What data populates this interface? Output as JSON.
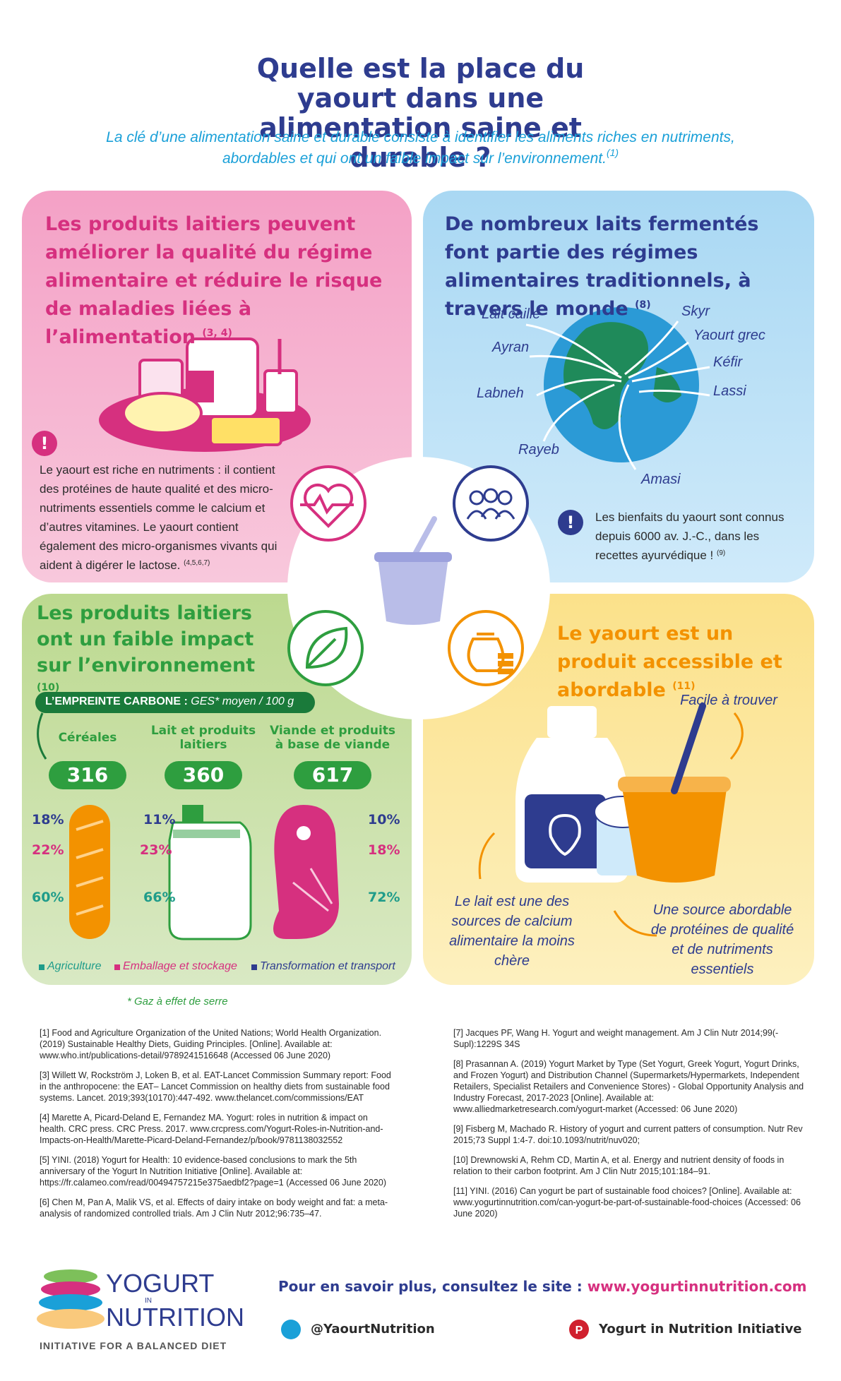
{
  "header": {
    "title": "Quelle est la place du yaourt dans une alimentation saine et durable ?",
    "subtitle": "La clé d’une alimentation saine et durable consiste à identifier les aliments riches en nutriments, abordables et qui ont un faible impact sur l’environnement.",
    "subtitle_ref": "(1)"
  },
  "health": {
    "title": "Les produits laitiers peuvent améliorer la qualité du régime alimentaire et réduire le risque de maladies liées à l’alimentation",
    "ref": "(3, 4)",
    "note": "Le yaourt est riche en nutriments : il contient des protéines de haute qualité et des micro-nutriments essentiels comme le calcium et d’autres vitamines. Le yaourt contient également des micro-organismes vivants qui aident à digérer le lactose.",
    "note_ref": "(4,5,6,7)"
  },
  "world": {
    "title": "De nombreux laits fermentés font partie des régimes alimentaires traditionnels, à travers le monde",
    "ref": "(8)",
    "labels": [
      "Lait caillé",
      "Skyr",
      "Yaourt grec",
      "Ayran",
      "Kéfir",
      "Lassi",
      "Labneh",
      "Rayeb",
      "Amasi"
    ],
    "note": "Les bienfaits du yaourt sont connus depuis 6000 av. J.-C., dans les recettes ayurvédique !",
    "note_ref": "(9)"
  },
  "environment": {
    "title": "Les produits laitiers ont un faible impact sur l’environnement",
    "ref": "(10)",
    "banner_label": "L’EMPREINTE CARBONE :",
    "banner_detail": "GES* moyen / 100 g",
    "items": [
      {
        "name": "Céréales",
        "value": "316",
        "shares": [
          "18%",
          "22%",
          "60%"
        ]
      },
      {
        "name": "Lait et produits laitiers",
        "value": "360",
        "shares": [
          "11%",
          "23%",
          "66%"
        ]
      },
      {
        "name": "Viande et produits à base de viande",
        "value": "617",
        "shares": [
          "10%",
          "18%",
          "72%"
        ]
      }
    ],
    "legend": [
      "Agriculture",
      "Emballage et stockage",
      "Transformation et transport"
    ],
    "footnote": "* Gaz à effet de serre"
  },
  "accessible": {
    "title": "Le yaourt est un produit accessible et abordable",
    "ref": "(11)",
    "labels": [
      "Facile à trouver",
      "Le lait est une des sources de calcium alimentaire la moins chère",
      "Une source abordable de protéines de qualité et de nutriments essentiels"
    ]
  },
  "references": {
    "left": [
      "[1] Food and Agriculture Organization of the United Nations; World Health Organization. (2019) Sustainable Healthy Diets, Guiding Principles. [Online]. Available at: www.who.int/publications-detail/9789241516648 (Accessed 06 June 2020)",
      "[3] Willett W, Rockström J, Loken B, et al. EAT-Lancet Commission Summary report: Food in the anthropocene: the EAT– Lancet Commission on healthy diets from sustainable food systems. Lancet. 2019;393(10170):447-492. www.thelancet.com/commissions/EAT",
      "[4] Marette A, Picard-Deland E, Fernandez MA. Yogurt: roles in nutrition & impact on health. CRC press. CRC Press. 2017. www.crcpress.com/Yogurt-Roles-in-Nutrition-and-Impacts-on-Health/Marette-Picard-Deland-Fernandez/p/book/9781138032552",
      "[5] YINI. (2018) Yogurt for Health: 10 evidence-based conclusions to mark the 5th anniversary of the Yogurt In Nutrition Initiative [Online]. Available at: https://fr.calameo.com/read/00494757215e375aedbf2?page=1 (Accessed 06 June 2020)",
      "[6] Chen M, Pan A, Malik VS, et al. Effects of dairy intake on body weight and fat: a meta-analysis of randomized controlled trials. Am J Clin Nutr 2012;96:735–47."
    ],
    "right": [
      "[7] Jacques PF, Wang H. Yogurt and weight management. Am J Clin Nutr 2014;99(-Supl):1229S 34S",
      "[8] Prasannan A. (2019) Yogurt Market by Type (Set Yogurt, Greek Yogurt, Yogurt Drinks, and Frozen Yogurt) and Distribution Channel (Supermarkets/Hypermarkets, Independent Retailers, Specialist Retailers and Convenience Stores) - Global Opportunity Analysis and Industry Forecast, 2017-2023 [Online]. Available at: www.alliedmarketresearch.com/yogurt-market (Accessed: 06 June 2020)",
      "[9] Fisberg M, Machado R. History of yogurt and current patters of consumption. Nutr Rev 2015;73 Suppl 1:4-7. doi:10.1093/nutrit/nuv020;",
      "[10] Drewnowski A, Rehm CD, Martin A, et al. Energy and nutrient density of foods in relation to their carbon footprint. Am J Clin Nutr 2015;101:184–91.",
      "[11] YINI. (2016) Can yogurt be part of sustainable food choices? [Online]. Available at: www.yogurtinnutrition.com/can-yogurt-be-part-of-sustainable-food-choices (Accessed: 06 June 2020)"
    ]
  },
  "footer": {
    "logo_top": "YOGURT",
    "logo_mid": "IN",
    "logo_bottom": "NUTRITION",
    "logo_tagline": "INITIATIVE FOR A BALANCED DIET",
    "more_info": "Pour en savoir plus, consultez le site :",
    "url": "www.yogurtinnutrition.com",
    "twitter": "@YaourtNutrition",
    "pinterest": "Yogurt in Nutrition Initiative"
  }
}
